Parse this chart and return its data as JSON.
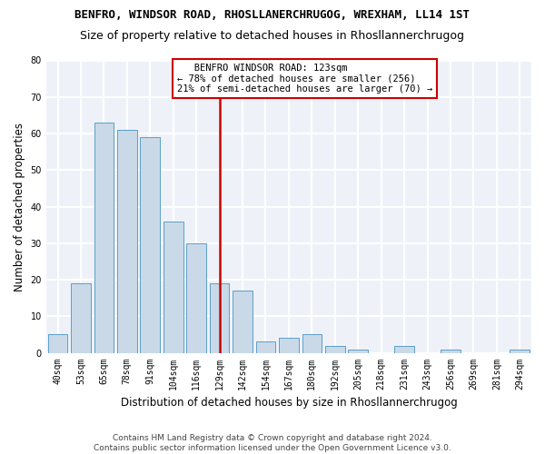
{
  "title1": "BENFRO, WINDSOR ROAD, RHOSLLANERCHRUGOG, WREXHAM, LL14 1ST",
  "title2": "Size of property relative to detached houses in Rhosllannerchrugog",
  "xlabel": "Distribution of detached houses by size in Rhosllannerchrugog",
  "ylabel": "Number of detached properties",
  "footnote": "Contains HM Land Registry data © Crown copyright and database right 2024.\nContains public sector information licensed under the Open Government Licence v3.0.",
  "categories": [
    "40sqm",
    "53sqm",
    "65sqm",
    "78sqm",
    "91sqm",
    "104sqm",
    "116sqm",
    "129sqm",
    "142sqm",
    "154sqm",
    "167sqm",
    "180sqm",
    "192sqm",
    "205sqm",
    "218sqm",
    "231sqm",
    "243sqm",
    "256sqm",
    "269sqm",
    "281sqm",
    "294sqm"
  ],
  "values": [
    5,
    19,
    63,
    61,
    59,
    36,
    30,
    19,
    17,
    3,
    4,
    5,
    2,
    1,
    0,
    2,
    0,
    1,
    0,
    0,
    1
  ],
  "bar_color": "#c9d9e8",
  "bar_edge_color": "#5a9ec8",
  "vline_x_index": 7,
  "vline_color": "#cc0000",
  "annotation_text": "   BENFRO WINDSOR ROAD: 123sqm\n← 78% of detached houses are smaller (256)\n21% of semi-detached houses are larger (70) →",
  "annotation_box_color": "#cc0000",
  "ylim": [
    0,
    80
  ],
  "yticks": [
    0,
    10,
    20,
    30,
    40,
    50,
    60,
    70,
    80
  ],
  "background_color": "#eef2f8",
  "grid_color": "#ffffff",
  "title1_fontsize": 9,
  "title2_fontsize": 9,
  "xlabel_fontsize": 8.5,
  "ylabel_fontsize": 8.5,
  "tick_fontsize": 7,
  "annotation_fontsize": 7.5,
  "fig_width": 6.0,
  "fig_height": 5.0,
  "dpi": 100
}
